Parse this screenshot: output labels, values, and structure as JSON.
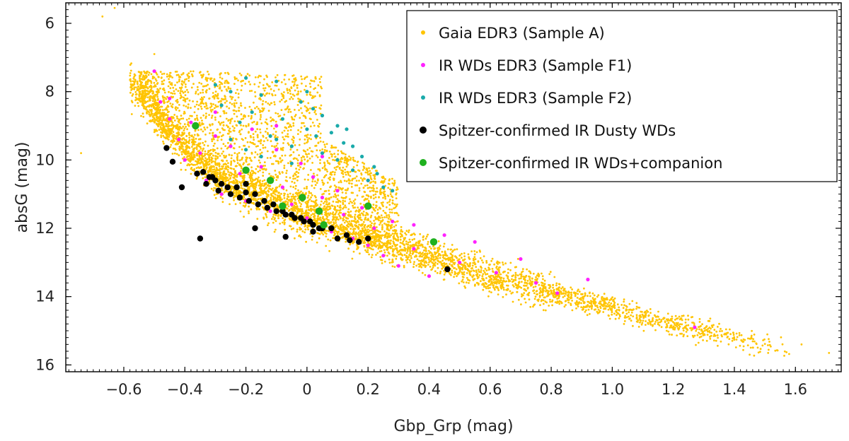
{
  "chart_data": {
    "type": "scatter",
    "title": "",
    "xlabel": "Gbp_Grp (mag)",
    "ylabel": "absG (mag)",
    "xlim": [
      -0.79,
      1.75
    ],
    "ylim": [
      16.2,
      5.4
    ],
    "y_inverted": true,
    "grid": false,
    "legend_position": "top-right",
    "x_ticks": [
      -0.6,
      -0.4,
      -0.2,
      0,
      0.2,
      0.4,
      0.6,
      0.8,
      1.0,
      1.2,
      1.4,
      1.6
    ],
    "x_tick_labels": [
      "−0.6",
      "−0.4",
      "−0.2",
      "0",
      "0.2",
      "0.4",
      "0.6",
      "0.8",
      "1.0",
      "1.2",
      "1.4",
      "1.6"
    ],
    "y_ticks": [
      6,
      8,
      10,
      12,
      14,
      16
    ],
    "y_tick_labels": [
      "6",
      "8",
      "10",
      "12",
      "14",
      "16"
    ],
    "series": [
      {
        "name": "Gaia EDR3 (Sample A)",
        "color": "#ffc400",
        "marker": "small-dot",
        "band_description": "dense white-dwarf cooling sequence: main band from (-0.55, 8.0) to (1.6, 15.6), plus a broad upper-left cloud between x -0.55 and 0.3",
        "x": [
          -0.6,
          -0.55,
          -0.5,
          -0.4,
          -0.3,
          -0.2,
          -0.1,
          0.0,
          0.1,
          0.2,
          0.3,
          0.4,
          0.5,
          0.6,
          0.7,
          0.8,
          0.9,
          1.0,
          1.1,
          1.2,
          1.3,
          1.4,
          1.5,
          1.6
        ],
        "y": [
          7.6,
          8.0,
          8.6,
          9.6,
          10.4,
          10.9,
          11.3,
          11.6,
          11.9,
          12.2,
          12.5,
          12.8,
          13.1,
          13.4,
          13.6,
          13.9,
          14.1,
          14.3,
          14.6,
          14.8,
          15.0,
          15.2,
          15.4,
          15.6
        ]
      },
      {
        "name": "IR WDs EDR3 (Sample F1)",
        "color": "#ff22ff",
        "marker": "dot",
        "x": [
          -0.5,
          -0.48,
          -0.45,
          -0.42,
          -0.4,
          -0.38,
          -0.35,
          -0.33,
          -0.3,
          -0.28,
          -0.25,
          -0.22,
          -0.2,
          -0.18,
          -0.15,
          -0.12,
          -0.1,
          -0.08,
          -0.05,
          -0.02,
          0.0,
          0.02,
          0.05,
          0.08,
          0.1,
          0.12,
          0.15,
          0.18,
          0.2,
          0.22,
          0.25,
          0.28,
          0.3,
          0.35,
          0.4,
          0.45,
          0.5,
          0.55,
          0.62,
          0.7,
          0.75,
          0.82,
          0.92,
          1.27,
          -0.45,
          -0.3,
          -0.1,
          0.05,
          0.2,
          0.35
        ],
        "y": [
          7.4,
          8.3,
          8.8,
          9.4,
          10.0,
          8.9,
          9.8,
          10.6,
          9.3,
          11.0,
          9.6,
          10.4,
          11.2,
          9.1,
          10.2,
          11.5,
          9.7,
          10.8,
          11.3,
          10.1,
          11.7,
          10.5,
          11.1,
          12.1,
          10.9,
          11.6,
          12.3,
          11.4,
          12.5,
          12.0,
          12.8,
          11.8,
          13.1,
          12.6,
          13.4,
          12.2,
          13.0,
          12.4,
          13.3,
          12.9,
          13.6,
          13.9,
          13.5,
          14.9,
          8.2,
          8.6,
          9.0,
          9.9,
          10.6,
          11.9
        ]
      },
      {
        "name": "IR WDs EDR3 (Sample F2)",
        "color": "#1aaaaa",
        "marker": "dot",
        "x": [
          -0.3,
          -0.28,
          -0.25,
          -0.22,
          -0.2,
          -0.18,
          -0.15,
          -0.12,
          -0.1,
          -0.08,
          -0.05,
          -0.02,
          0.0,
          0.02,
          0.05,
          0.08,
          0.1,
          0.12,
          0.15,
          0.18,
          0.2,
          0.22,
          0.25,
          0.28,
          -0.2,
          -0.1,
          0.0,
          0.05,
          0.1,
          0.15,
          -0.25,
          -0.15,
          -0.05,
          0.03,
          0.13,
          0.23
        ],
        "y": [
          7.8,
          8.4,
          8.0,
          8.9,
          7.6,
          8.6,
          8.1,
          9.3,
          7.7,
          8.8,
          9.6,
          8.3,
          9.1,
          8.5,
          9.8,
          9.2,
          10.0,
          9.5,
          10.3,
          9.9,
          10.6,
          10.2,
          10.8,
          10.9,
          9.7,
          9.4,
          8.0,
          8.7,
          9.0,
          9.6,
          9.4,
          9.9,
          10.1,
          9.3,
          9.1,
          10.4
        ]
      },
      {
        "name": "Spitzer-confirmed IR Dusty WDs",
        "color": "#000000",
        "marker": "large-dot",
        "x": [
          -0.46,
          -0.44,
          -0.41,
          -0.36,
          -0.35,
          -0.33,
          -0.32,
          -0.3,
          -0.29,
          -0.28,
          -0.26,
          -0.25,
          -0.23,
          -0.22,
          -0.2,
          -0.19,
          -0.17,
          -0.16,
          -0.14,
          -0.13,
          -0.11,
          -0.1,
          -0.08,
          -0.07,
          -0.05,
          -0.04,
          -0.02,
          -0.01,
          0.01,
          0.02,
          0.04,
          0.05,
          -0.34,
          -0.17,
          -0.07,
          0.02,
          0.1,
          0.13,
          0.17,
          0.2,
          0.08,
          0.46,
          -0.31,
          -0.2,
          0.14
        ],
        "y": [
          9.65,
          10.05,
          10.8,
          10.4,
          12.3,
          10.7,
          10.5,
          10.6,
          10.9,
          10.7,
          10.8,
          11.0,
          10.8,
          11.1,
          10.7,
          11.2,
          11.0,
          11.3,
          11.2,
          11.4,
          11.3,
          11.5,
          11.5,
          11.6,
          11.6,
          11.7,
          11.7,
          11.8,
          11.8,
          11.9,
          12.0,
          12.0,
          10.35,
          12.0,
          12.25,
          12.1,
          12.3,
          12.2,
          12.4,
          12.3,
          12.0,
          13.2,
          10.5,
          10.95,
          12.35
        ]
      },
      {
        "name": "Spitzer-confirmed IR WDs+companion",
        "color": "#1fb11f",
        "marker": "large-dot",
        "x": [
          -0.365,
          -0.2,
          -0.12,
          -0.08,
          -0.015,
          0.04,
          0.055,
          0.2,
          0.415
        ],
        "y": [
          9.0,
          10.3,
          10.6,
          11.35,
          11.1,
          11.5,
          11.9,
          11.35,
          12.4
        ]
      }
    ]
  },
  "legend": {
    "items": [
      {
        "label": "Gaia EDR3 (Sample A)",
        "color": "#ffc400",
        "size": "small"
      },
      {
        "label": "IR WDs EDR3 (Sample F1)",
        "color": "#ff22ff",
        "size": "small"
      },
      {
        "label": "IR WDs EDR3 (Sample F2)",
        "color": "#1aaaaa",
        "size": "small"
      },
      {
        "label": "Spitzer-confirmed IR Dusty WDs",
        "color": "#000000",
        "size": "large"
      },
      {
        "label": "Spitzer-confirmed IR WDs+companion",
        "color": "#1fb11f",
        "size": "large"
      }
    ]
  }
}
